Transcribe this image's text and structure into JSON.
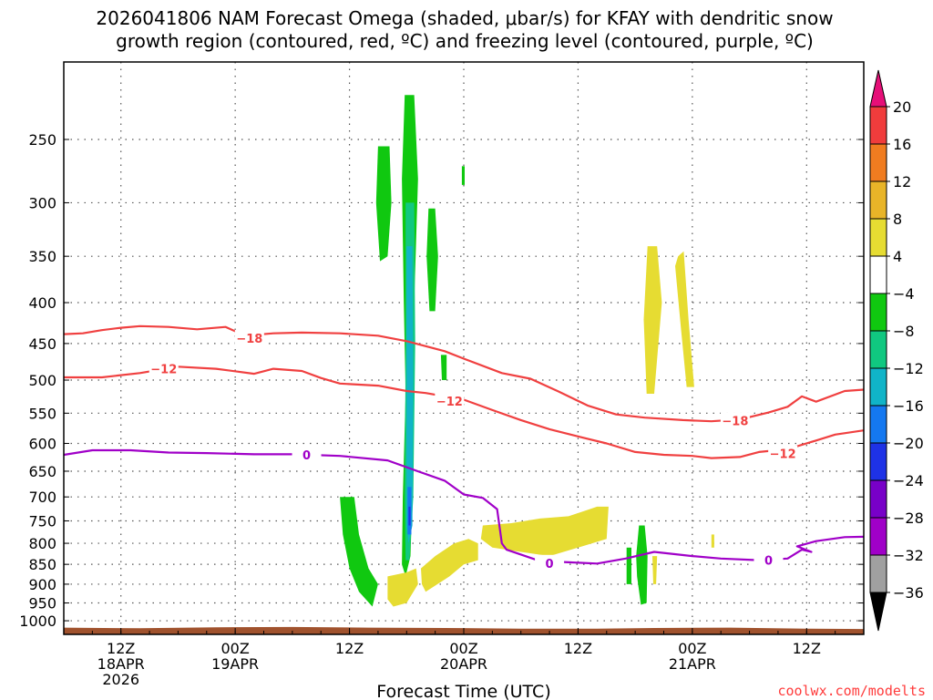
{
  "title_line1": "2026041806 NAM Forecast Omega (shaded, μbar/s) for KFAY with dendritic snow",
  "title_line2": "growth region (contoured, red, ºC) and freezing level (contoured, purple, ºC)",
  "credit": "coolwx.com/modelts",
  "chart_data": {
    "type": "heatmap",
    "title": "2026041806 NAM Forecast Omega (shaded, μbar/s) for KFAY with dendritic snow growth region (contoured, red, ºC) and freezing level (contoured, purple, ºC)",
    "xlabel": "Forecast Time (UTC)",
    "ylabel": "",
    "x_unit": "forecast hour from 2026041806",
    "xlim": [
      0,
      84
    ],
    "y_scale": "log-pressure",
    "ylim_hPa": [
      1040,
      200
    ],
    "y_ticks": [
      250,
      300,
      350,
      400,
      450,
      500,
      550,
      600,
      650,
      700,
      750,
      800,
      850,
      900,
      950,
      1000
    ],
    "x_ticks": [
      {
        "hour": 6,
        "l1": "12Z",
        "l2": "18APR",
        "l3": "2026"
      },
      {
        "hour": 18,
        "l1": "00Z",
        "l2": "19APR",
        "l3": ""
      },
      {
        "hour": 30,
        "l1": "12Z",
        "l2": "",
        "l3": ""
      },
      {
        "hour": 42,
        "l1": "00Z",
        "l2": "20APR",
        "l3": ""
      },
      {
        "hour": 54,
        "l1": "12Z",
        "l2": "",
        "l3": ""
      },
      {
        "hour": 66,
        "l1": "00Z",
        "l2": "21APR",
        "l3": ""
      },
      {
        "hour": 78,
        "l1": "12Z",
        "l2": "",
        "l3": ""
      }
    ],
    "grid": true,
    "colorbar": {
      "labels": [
        "20",
        "16",
        "12",
        "8",
        "4",
        "−4",
        "−8",
        "−12",
        "−16",
        "−20",
        "−24",
        "−28",
        "−32",
        "−36"
      ],
      "colors": [
        "#f03c3c",
        "#f07c20",
        "#e8b428",
        "#e6dc32",
        "#ffffff",
        "#10c810",
        "#10c880",
        "#10b4c8",
        "#1478f0",
        "#1e32e6",
        "#7800c8",
        "#a000c8",
        "#a0a0a0"
      ],
      "top_arrow": "#e60f78",
      "bottom_arrow": "#000000"
    },
    "contours": [
      {
        "name": "-18",
        "color": "#f04040",
        "label": "−18",
        "label_positions": [
          [
            19.5,
            443
          ],
          [
            70.5,
            562
          ]
        ],
        "points": [
          [
            0,
            438
          ],
          [
            2,
            437
          ],
          [
            4,
            433
          ],
          [
            6,
            430
          ],
          [
            8,
            428
          ],
          [
            11,
            429
          ],
          [
            14,
            432
          ],
          [
            17,
            429
          ],
          [
            19,
            440
          ],
          [
            22,
            437
          ],
          [
            25,
            436
          ],
          [
            29,
            437
          ],
          [
            33,
            440
          ],
          [
            36,
            447
          ],
          [
            40,
            460
          ],
          [
            42,
            470
          ],
          [
            46,
            490
          ],
          [
            49,
            498
          ],
          [
            52,
            517
          ],
          [
            55,
            538
          ],
          [
            58,
            552
          ],
          [
            61,
            557
          ],
          [
            65,
            561
          ],
          [
            68,
            563
          ],
          [
            71,
            560
          ],
          [
            74,
            549
          ],
          [
            76,
            540
          ],
          [
            77.5,
            524
          ],
          [
            79,
            532
          ],
          [
            82,
            516
          ],
          [
            84,
            514
          ]
        ]
      },
      {
        "name": "-12",
        "color": "#f04040",
        "label": "−12",
        "label_positions": [
          [
            10.5,
            484
          ],
          [
            40.5,
            531
          ],
          [
            75.5,
            618
          ]
        ],
        "points": [
          [
            0,
            496
          ],
          [
            4,
            496
          ],
          [
            8,
            490
          ],
          [
            12,
            481
          ],
          [
            16,
            484
          ],
          [
            20,
            491
          ],
          [
            22,
            484
          ],
          [
            25,
            487
          ],
          [
            27,
            497
          ],
          [
            29,
            505
          ],
          [
            33,
            508
          ],
          [
            36,
            516
          ],
          [
            38,
            519
          ],
          [
            42,
            529
          ],
          [
            45,
            545
          ],
          [
            48,
            561
          ],
          [
            51,
            576
          ],
          [
            54,
            588
          ],
          [
            57,
            600
          ],
          [
            60,
            615
          ],
          [
            63,
            620
          ],
          [
            66,
            622
          ],
          [
            68,
            626
          ],
          [
            71,
            624
          ],
          [
            73,
            615
          ],
          [
            76,
            610
          ],
          [
            79,
            595
          ],
          [
            81,
            585
          ],
          [
            84,
            578
          ]
        ]
      },
      {
        "name": "0",
        "color": "#a000c8",
        "label": "0",
        "label_positions": [
          [
            25.5,
            620
          ],
          [
            51,
            847
          ],
          [
            74,
            840
          ]
        ],
        "points": [
          [
            0,
            620
          ],
          [
            3,
            612
          ],
          [
            7,
            612
          ],
          [
            11,
            616
          ],
          [
            15,
            617
          ],
          [
            20,
            619
          ],
          [
            24,
            619
          ],
          [
            29,
            622
          ],
          [
            34,
            630
          ],
          [
            37,
            649
          ],
          [
            40,
            668
          ],
          [
            42,
            695
          ],
          [
            44,
            702
          ],
          [
            45.5,
            725
          ],
          [
            46,
            800
          ],
          [
            46.5,
            815
          ],
          [
            50,
            842
          ],
          [
            53,
            845
          ],
          [
            56,
            848
          ],
          [
            59,
            836
          ],
          [
            62,
            820
          ],
          [
            66,
            830
          ],
          [
            69,
            836
          ],
          [
            73,
            840
          ],
          [
            76,
            836
          ],
          [
            77.5,
            815
          ],
          [
            78.5,
            820
          ],
          [
            77,
            807
          ],
          [
            79,
            795
          ],
          [
            82,
            786
          ],
          [
            84,
            785
          ]
        ]
      }
    ],
    "terrain": {
      "color": "#a0522d",
      "top_hPa": 1020,
      "points": [
        [
          0,
          1020
        ],
        [
          8,
          1022
        ],
        [
          16,
          1019
        ],
        [
          24,
          1018
        ],
        [
          32,
          1020
        ],
        [
          40,
          1021
        ],
        [
          48,
          1023
        ],
        [
          56,
          1023
        ],
        [
          62,
          1021
        ],
        [
          70,
          1020
        ],
        [
          78,
          1023
        ],
        [
          84,
          1024
        ]
      ]
    },
    "omega_regions": [
      {
        "value": "-4..-8",
        "color": "#10c810",
        "poly": [
          [
            33.0,
            255
          ],
          [
            34.2,
            255
          ],
          [
            34.4,
            300
          ],
          [
            34.0,
            350
          ],
          [
            33.2,
            355
          ],
          [
            32.8,
            300
          ]
        ]
      },
      {
        "value": "-4..-8",
        "color": "#10c810",
        "poly": [
          [
            35.8,
            220
          ],
          [
            36.8,
            220
          ],
          [
            37.2,
            280
          ],
          [
            36.8,
            400
          ],
          [
            36.6,
            520
          ],
          [
            36.6,
            700
          ],
          [
            36.4,
            830
          ],
          [
            35.9,
            880
          ],
          [
            35.5,
            850
          ],
          [
            35.6,
            700
          ],
          [
            35.9,
            520
          ],
          [
            35.7,
            400
          ],
          [
            35.5,
            280
          ]
        ]
      },
      {
        "value": "-8..-12",
        "color": "#10c880",
        "poly": [
          [
            35.9,
            300
          ],
          [
            36.8,
            300
          ],
          [
            36.9,
            450
          ],
          [
            36.7,
            700
          ],
          [
            36.3,
            840
          ],
          [
            35.9,
            840
          ],
          [
            35.8,
            700
          ],
          [
            35.9,
            450
          ]
        ]
      },
      {
        "value": "-12..-16",
        "color": "#10b4c8",
        "poly": [
          [
            36.0,
            340
          ],
          [
            36.6,
            340
          ],
          [
            36.7,
            500
          ],
          [
            36.6,
            760
          ],
          [
            36.2,
            800
          ],
          [
            36.0,
            760
          ],
          [
            36.0,
            500
          ]
        ]
      },
      {
        "value": "-16..-20",
        "color": "#1478f0",
        "poly": [
          [
            36.1,
            680
          ],
          [
            36.5,
            680
          ],
          [
            36.5,
            780
          ],
          [
            36.1,
            780
          ]
        ]
      },
      {
        "value": "-20..-24",
        "color": "#1e32e6",
        "poly": [
          [
            36.2,
            720
          ],
          [
            36.4,
            720
          ],
          [
            36.4,
            760
          ],
          [
            36.2,
            760
          ]
        ]
      },
      {
        "value": "-4..-8",
        "color": "#10c810",
        "poly": [
          [
            38.3,
            305
          ],
          [
            39.0,
            305
          ],
          [
            39.3,
            350
          ],
          [
            39.0,
            410
          ],
          [
            38.4,
            410
          ],
          [
            38.1,
            350
          ]
        ]
      },
      {
        "value": "-4..-8",
        "color": "#10c810",
        "poly": [
          [
            39.6,
            465
          ],
          [
            40.2,
            465
          ],
          [
            40.2,
            500
          ],
          [
            39.7,
            500
          ]
        ]
      },
      {
        "value": "-4..-8",
        "color": "#10c810",
        "poly": [
          [
            41.8,
            270
          ],
          [
            42.1,
            270
          ],
          [
            42.1,
            285
          ],
          [
            41.8,
            285
          ]
        ]
      },
      {
        "value": "-4..-8",
        "color": "#10c810",
        "poly": [
          [
            29.0,
            700
          ],
          [
            30.5,
            700
          ],
          [
            31.0,
            780
          ],
          [
            32.0,
            860
          ],
          [
            33.0,
            900
          ],
          [
            32.4,
            960
          ],
          [
            31.0,
            920
          ],
          [
            30.0,
            860
          ],
          [
            29.3,
            780
          ]
        ]
      },
      {
        "value": "-4..-8",
        "color": "#10c810",
        "poly": [
          [
            59.1,
            810
          ],
          [
            59.6,
            810
          ],
          [
            59.6,
            900
          ],
          [
            59.1,
            900
          ]
        ]
      },
      {
        "value": "-4..-8",
        "color": "#10c810",
        "poly": [
          [
            60.4,
            760
          ],
          [
            61.0,
            760
          ],
          [
            61.3,
            830
          ],
          [
            61.2,
            950
          ],
          [
            60.6,
            955
          ],
          [
            60.2,
            880
          ],
          [
            60.1,
            830
          ]
        ]
      },
      {
        "value": "4..8",
        "color": "#e6dc32",
        "poly": [
          [
            61.3,
            340
          ],
          [
            62.3,
            340
          ],
          [
            62.8,
            400
          ],
          [
            62.0,
            520
          ],
          [
            61.2,
            520
          ],
          [
            60.9,
            420
          ]
        ]
      },
      {
        "value": "4..8",
        "color": "#e6dc32",
        "poly": [
          [
            64.5,
            350
          ],
          [
            65.1,
            345
          ],
          [
            65.6,
            420
          ],
          [
            66.2,
            510
          ],
          [
            65.4,
            510
          ],
          [
            64.8,
            430
          ],
          [
            64.2,
            360
          ]
        ]
      },
      {
        "value": "4..8",
        "color": "#e6dc32",
        "poly": [
          [
            34.0,
            880
          ],
          [
            36.0,
            870
          ],
          [
            37.0,
            860
          ],
          [
            37.2,
            900
          ],
          [
            36.0,
            950
          ],
          [
            34.6,
            960
          ],
          [
            34.0,
            940
          ]
        ]
      },
      {
        "value": "4..8",
        "color": "#e6dc32",
        "poly": [
          [
            37.5,
            860
          ],
          [
            39.0,
            830
          ],
          [
            41.0,
            800
          ],
          [
            42.5,
            790
          ],
          [
            43.5,
            800
          ],
          [
            43.5,
            840
          ],
          [
            42.0,
            850
          ],
          [
            40.5,
            880
          ],
          [
            38.0,
            920
          ],
          [
            37.6,
            900
          ]
        ]
      },
      {
        "value": "4..8",
        "color": "#e6dc32",
        "poly": [
          [
            44.0,
            760
          ],
          [
            47.0,
            755
          ],
          [
            50.0,
            745
          ],
          [
            53.0,
            740
          ],
          [
            56.0,
            720
          ],
          [
            57.2,
            720
          ],
          [
            57.0,
            790
          ],
          [
            54.0,
            810
          ],
          [
            51.0,
            830
          ],
          [
            48.0,
            820
          ],
          [
            45.0,
            810
          ],
          [
            43.8,
            790
          ]
        ]
      },
      {
        "value": "4..8",
        "color": "#e6dc32",
        "poly": [
          [
            61.8,
            830
          ],
          [
            62.3,
            830
          ],
          [
            62.2,
            900
          ],
          [
            61.9,
            900
          ]
        ]
      },
      {
        "value": "4..8",
        "color": "#e6dc32",
        "poly": [
          [
            68.0,
            780
          ],
          [
            68.3,
            780
          ],
          [
            68.3,
            810
          ],
          [
            68.0,
            810
          ]
        ]
      }
    ]
  }
}
